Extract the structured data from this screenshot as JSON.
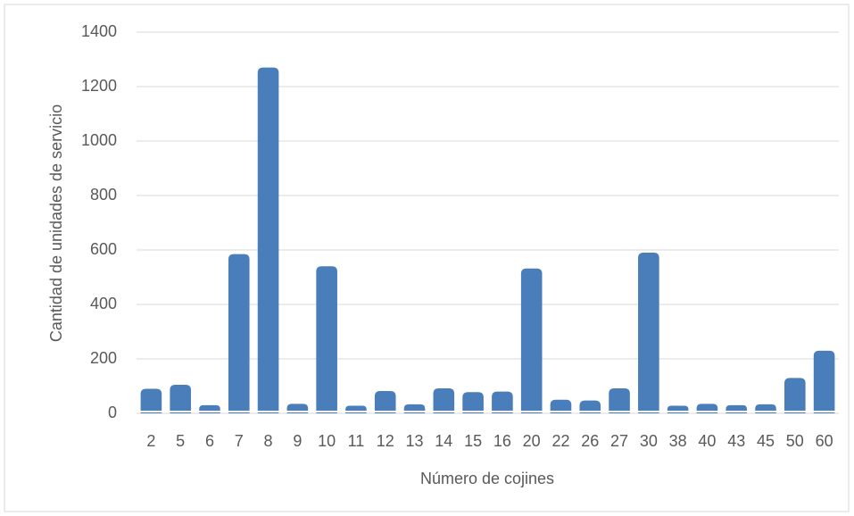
{
  "chart_data": {
    "type": "bar",
    "xlabel": "Número de cojines",
    "ylabel": "Cantidad de unidades de servicio",
    "categories": [
      "2",
      "5",
      "6",
      "7",
      "8",
      "9",
      "10",
      "11",
      "12",
      "13",
      "14",
      "15",
      "16",
      "20",
      "22",
      "26",
      "27",
      "30",
      "38",
      "40",
      "43",
      "45",
      "50",
      "60"
    ],
    "values": [
      90,
      105,
      30,
      585,
      1270,
      35,
      540,
      28,
      82,
      33,
      92,
      78,
      80,
      532,
      50,
      47,
      92,
      590,
      28,
      35,
      30,
      33,
      130,
      230
    ],
    "color": "#4a7ebb",
    "ylim": [
      0,
      1400
    ],
    "yticks": [
      0,
      200,
      400,
      600,
      800,
      1000,
      1200,
      1400
    ],
    "grid": true
  }
}
